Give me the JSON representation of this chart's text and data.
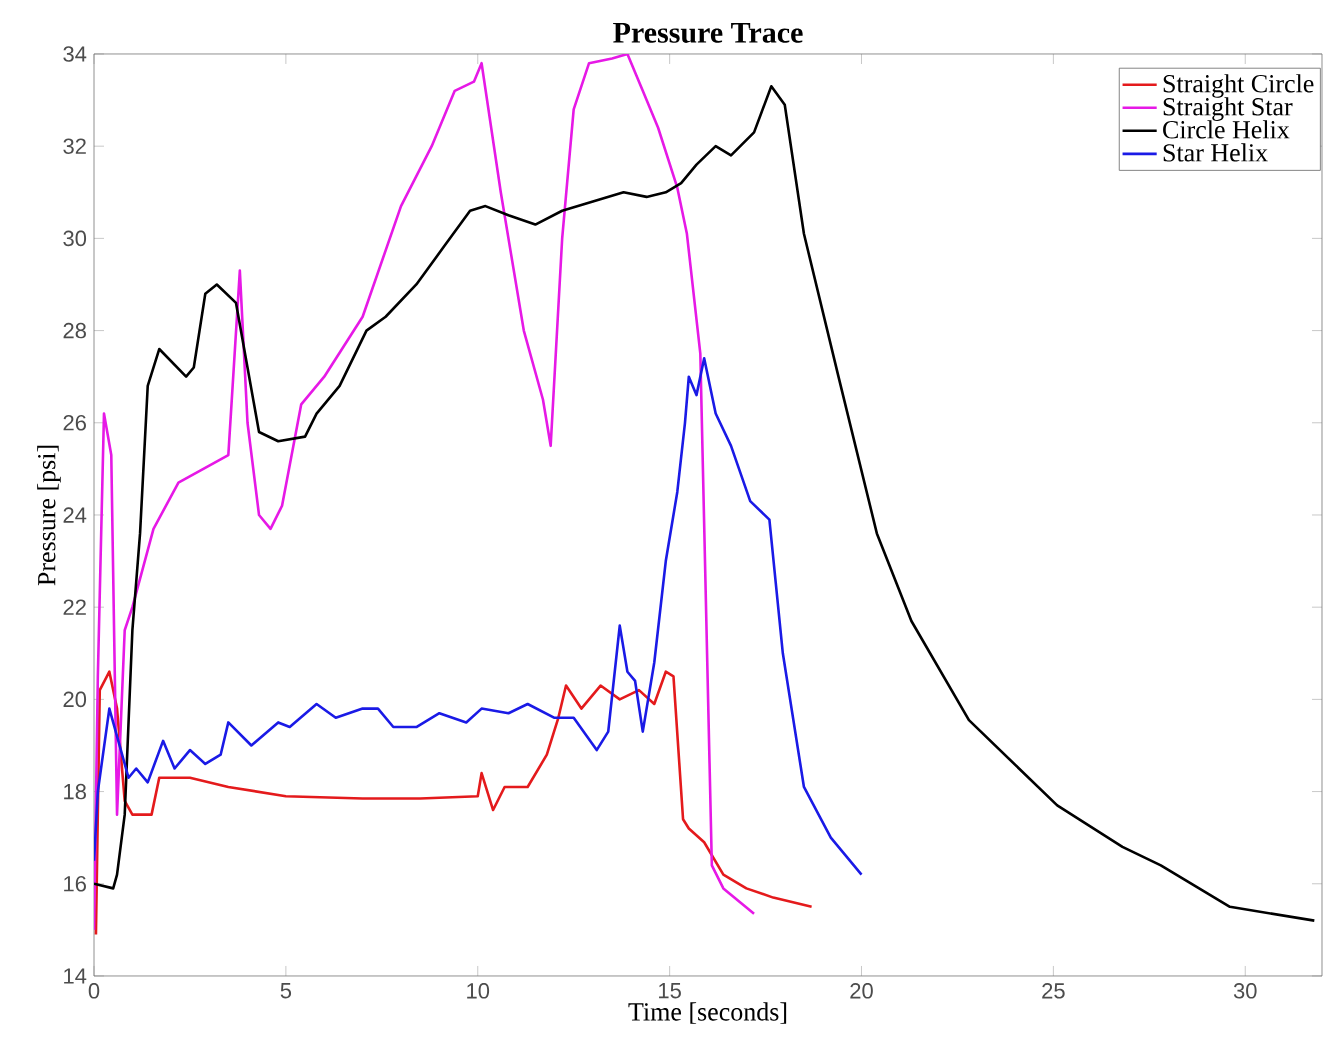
{
  "chart_data": {
    "type": "line",
    "title": "Pressure Trace",
    "xlabel": "Time [seconds]",
    "ylabel": "Pressure [psi]",
    "xlim": [
      0,
      32
    ],
    "ylim": [
      14,
      34
    ],
    "xticks": [
      0,
      5,
      10,
      15,
      20,
      25,
      30
    ],
    "yticks": [
      14,
      16,
      18,
      20,
      22,
      24,
      26,
      28,
      30,
      32,
      34
    ],
    "grid": false,
    "legend": "top right",
    "marker": "none",
    "line_style": "solid",
    "series": [
      {
        "name": "Straight Circle",
        "color": "#e41a1c",
        "x": [
          0.05,
          0.15,
          0.4,
          0.6,
          0.8,
          1.0,
          1.5,
          1.7,
          2.5,
          3.5,
          5,
          7,
          8.5,
          10,
          10.1,
          10.4,
          10.7,
          11.3,
          11.8,
          12.1,
          12.3,
          12.7,
          13.2,
          13.7,
          14.2,
          14.6,
          14.9,
          15.1,
          15.35,
          15.5,
          15.9,
          16.4,
          17,
          17.7,
          18.7
        ],
        "values": [
          14.9,
          20.2,
          20.6,
          19.8,
          17.8,
          17.5,
          17.5,
          18.3,
          18.3,
          18.1,
          17.9,
          17.85,
          17.85,
          17.9,
          18.4,
          17.6,
          18.1,
          18.1,
          18.8,
          19.6,
          20.3,
          19.8,
          20.3,
          20.0,
          20.2,
          19.9,
          20.6,
          20.5,
          17.4,
          17.2,
          16.9,
          16.2,
          15.9,
          15.7,
          15.5
        ]
      },
      {
        "name": "Straight Star",
        "color": "#e619e6",
        "x": [
          0,
          0.1,
          0.26,
          0.45,
          0.6,
          0.8,
          1.0,
          1.55,
          2.2,
          3.5,
          3.8,
          4.0,
          4.3,
          4.6,
          4.9,
          5.4,
          6.0,
          7.0,
          8.0,
          8.8,
          9.4,
          9.9,
          10.1,
          10.6,
          11.2,
          11.7,
          11.9,
          12.2,
          12.5,
          12.9,
          13.5,
          13.9,
          14.3,
          14.7,
          15.2,
          15.45,
          15.8,
          16.1,
          16.4,
          17.2
        ],
        "values": [
          15.0,
          20.5,
          26.2,
          25.3,
          17.5,
          21.5,
          22.0,
          23.7,
          24.7,
          25.3,
          29.3,
          26.0,
          24.0,
          23.7,
          24.2,
          26.4,
          27.0,
          28.3,
          30.7,
          32.0,
          33.2,
          33.4,
          33.8,
          31.0,
          28.0,
          26.5,
          25.5,
          30.0,
          32.8,
          33.8,
          33.9,
          34.0,
          33.2,
          32.4,
          31.1,
          30.1,
          27.5,
          16.4,
          15.9,
          15.35
        ]
      },
      {
        "name": "Circle Helix",
        "color": "#000000",
        "x": [
          0,
          0.5,
          0.6,
          0.8,
          1.0,
          1.2,
          1.4,
          1.7,
          2.4,
          2.6,
          2.9,
          3.2,
          3.7,
          4.0,
          4.3,
          4.8,
          5.5,
          5.8,
          6.4,
          7.1,
          7.6,
          8.4,
          9.1,
          9.8,
          10.2,
          10.8,
          11.5,
          12.2,
          13.0,
          13.8,
          14.4,
          14.9,
          15.3,
          15.7,
          16.2,
          16.6,
          17.2,
          17.65,
          18.0,
          18.5,
          19.4,
          20.4,
          21.3,
          22.8,
          25.1,
          26.8,
          27.8,
          29.6,
          31.8
        ],
        "values": [
          16.0,
          15.9,
          16.2,
          17.5,
          21.5,
          23.6,
          26.8,
          27.6,
          27.0,
          27.2,
          28.8,
          29.0,
          28.6,
          27.2,
          25.8,
          25.6,
          25.7,
          26.2,
          26.8,
          28.0,
          28.3,
          29.0,
          29.8,
          30.6,
          30.7,
          30.5,
          30.3,
          30.6,
          30.8,
          31.0,
          30.9,
          31.0,
          31.2,
          31.6,
          32.0,
          31.8,
          32.3,
          33.3,
          32.9,
          30.1,
          27.0,
          23.6,
          21.7,
          19.55,
          17.7,
          16.8,
          16.4,
          15.5,
          15.2
        ]
      },
      {
        "name": "Star Helix",
        "color": "#1a1ae6",
        "x": [
          0,
          0.1,
          0.4,
          0.9,
          1.1,
          1.4,
          1.8,
          2.1,
          2.5,
          2.9,
          3.3,
          3.5,
          4.1,
          4.8,
          5.1,
          5.8,
          6.3,
          7.0,
          7.4,
          7.8,
          8.4,
          9.0,
          9.7,
          10.1,
          10.8,
          11.3,
          12.0,
          12.5,
          13.1,
          13.4,
          13.7,
          13.9,
          14.1,
          14.3,
          14.6,
          14.9,
          15.2,
          15.4,
          15.5,
          15.7,
          15.9,
          16.2,
          16.6,
          17.1,
          17.6,
          17.95,
          18.5,
          19.2,
          20.0
        ],
        "values": [
          16.5,
          18.0,
          19.8,
          18.3,
          18.5,
          18.2,
          19.1,
          18.5,
          18.9,
          18.6,
          18.8,
          19.5,
          19.0,
          19.5,
          19.4,
          19.9,
          19.6,
          19.8,
          19.8,
          19.4,
          19.4,
          19.7,
          19.5,
          19.8,
          19.7,
          19.9,
          19.6,
          19.6,
          18.9,
          19.3,
          21.6,
          20.6,
          20.4,
          19.3,
          20.8,
          23.0,
          24.5,
          26.0,
          27.0,
          26.6,
          27.4,
          26.2,
          25.5,
          24.3,
          23.9,
          21.0,
          18.1,
          17.0,
          16.2
        ]
      }
    ]
  }
}
